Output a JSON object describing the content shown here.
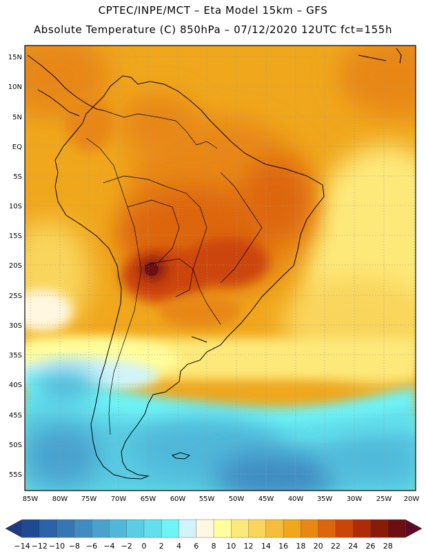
{
  "header": {
    "line1": "CPTEC/INPE/MCT –  Eta Model 15km – GFS",
    "line2": "Absolute Temperature (C) 850hPa – 07/12/2020 12UTC fct=155h"
  },
  "map": {
    "lat_labels": [
      "15N",
      "10N",
      "5N",
      "EQ",
      "5S",
      "10S",
      "15S",
      "20S",
      "25S",
      "30S",
      "35S",
      "40S",
      "45S",
      "50S",
      "55S"
    ],
    "lon_labels": [
      "85W",
      "80W",
      "75W",
      "70W",
      "65W",
      "60W",
      "55W",
      "50W",
      "45W",
      "40W",
      "35W",
      "30W",
      "25W",
      "20W"
    ]
  },
  "colorbar": {
    "labels": [
      "-14",
      "-12",
      "-10",
      "-8",
      "-6",
      "-4",
      "-2",
      "0",
      "2",
      "4",
      "6",
      "8",
      "10",
      "12",
      "14",
      "16",
      "18",
      "20",
      "22",
      "24",
      "26",
      "28"
    ],
    "colors": [
      "#1e4a94",
      "#2b62a8",
      "#3577b5",
      "#3f8cc2",
      "#49a2ce",
      "#4fb8da",
      "#58cde3",
      "#62dfec",
      "#6ef3f6",
      "#d0f4fa",
      "#fff7df",
      "#fffd9c",
      "#fde97a",
      "#f9d55c",
      "#f4bd3c",
      "#f0a71c",
      "#e88712",
      "#dd660c",
      "#cc4508",
      "#b02a06",
      "#8a1b08",
      "#6b0f12"
    ],
    "low_color": "#1e3a80",
    "high_color": "#5a0a26"
  }
}
